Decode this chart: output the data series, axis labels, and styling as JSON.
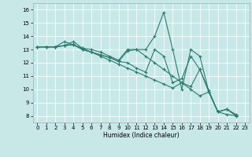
{
  "xlabel": "Humidex (Indice chaleur)",
  "background_color": "#c8e8e8",
  "line_color": "#2d7b6e",
  "grid_color": "#ffffff",
  "xlim": [
    -0.5,
    23.5
  ],
  "ylim": [
    7.5,
    16.5
  ],
  "xticks": [
    0,
    1,
    2,
    3,
    4,
    5,
    6,
    7,
    8,
    9,
    10,
    11,
    12,
    13,
    14,
    15,
    16,
    17,
    18,
    19,
    20,
    21,
    22,
    23
  ],
  "yticks": [
    8,
    9,
    10,
    11,
    12,
    13,
    14,
    15,
    16
  ],
  "series1_x": [
    0,
    1,
    2,
    3,
    4,
    5,
    6,
    7,
    8,
    9,
    10,
    11,
    12,
    13,
    14,
    15,
    16,
    17,
    18,
    19,
    20,
    21,
    22
  ],
  "series1_y": [
    13.2,
    13.2,
    13.2,
    13.3,
    13.6,
    13.1,
    13.0,
    12.8,
    12.5,
    12.2,
    13.0,
    13.0,
    13.0,
    14.0,
    15.8,
    13.0,
    10.0,
    13.0,
    12.5,
    9.8,
    8.3,
    8.5,
    8.0
  ],
  "series2_x": [
    0,
    1,
    2,
    3,
    4,
    5,
    6,
    7,
    8,
    9,
    10,
    11,
    12,
    13,
    14,
    15,
    16,
    17,
    18,
    19,
    20,
    21,
    22
  ],
  "series2_y": [
    13.2,
    13.2,
    13.2,
    13.3,
    13.35,
    13.1,
    12.8,
    12.6,
    12.4,
    12.1,
    12.9,
    13.0,
    12.5,
    12.0,
    11.5,
    11.0,
    10.5,
    10.0,
    9.5,
    9.8,
    8.3,
    8.5,
    8.05
  ],
  "series3_x": [
    0,
    1,
    2,
    3,
    4,
    5,
    6,
    7,
    8,
    9,
    10,
    11,
    12,
    13,
    14,
    15,
    16,
    17,
    18,
    19,
    20,
    21,
    22
  ],
  "series3_y": [
    13.2,
    13.2,
    13.2,
    13.6,
    13.35,
    13.0,
    12.8,
    12.6,
    12.4,
    12.1,
    12.0,
    11.6,
    11.3,
    13.0,
    12.5,
    10.5,
    10.8,
    12.5,
    11.5,
    9.9,
    8.3,
    8.5,
    8.1
  ],
  "series4_x": [
    0,
    1,
    2,
    3,
    4,
    5,
    6,
    7,
    8,
    9,
    10,
    11,
    12,
    13,
    14,
    15,
    16,
    17,
    18,
    19,
    20,
    21,
    22
  ],
  "series4_y": [
    13.2,
    13.2,
    13.2,
    13.3,
    13.4,
    13.0,
    12.8,
    12.5,
    12.2,
    11.9,
    11.6,
    11.3,
    11.0,
    10.7,
    10.4,
    10.1,
    10.5,
    10.2,
    11.5,
    9.8,
    8.3,
    8.1,
    8.0
  ]
}
